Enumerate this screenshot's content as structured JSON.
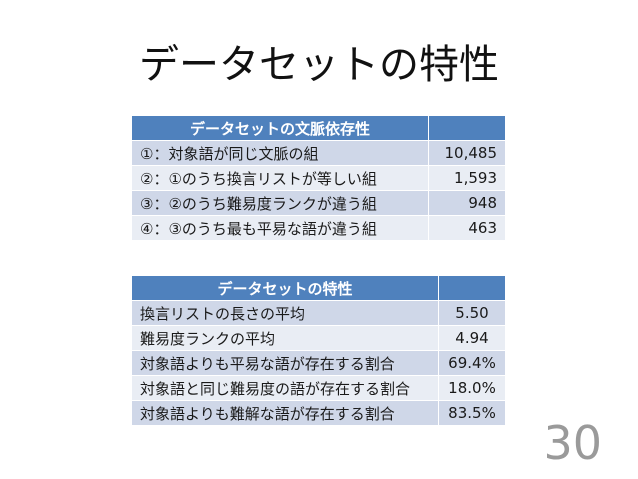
{
  "slide": {
    "title": "データセットの特性",
    "page_number": "30"
  },
  "table1": {
    "header": [
      "データセットの文脈依存性",
      ""
    ],
    "rows": [
      [
        "①：対象語が同じ文脈の組",
        "10,485"
      ],
      [
        "②：①のうち換言リストが等しい組",
        "1,593"
      ],
      [
        "③：②のうち難易度ランクが違う組",
        "948"
      ],
      [
        "④：③のうち最も平易な語が違う組",
        "463"
      ]
    ]
  },
  "table2": {
    "header": [
      "データセットの特性",
      ""
    ],
    "rows": [
      [
        "換言リストの長さの平均",
        "5.50"
      ],
      [
        "難易度ランクの平均",
        "4.94"
      ],
      [
        "対象語よりも平易な語が存在する割合",
        "69.4%"
      ],
      [
        "対象語と同じ難易度の語が存在する割合",
        "18.0%"
      ],
      [
        "対象語よりも難解な語が存在する割合",
        "83.5%"
      ]
    ]
  },
  "colors": {
    "header_bg": "#4f81bd",
    "row_odd": "#cfd7e8",
    "row_even": "#e9edf4",
    "page_number": "#9a9a9a"
  }
}
